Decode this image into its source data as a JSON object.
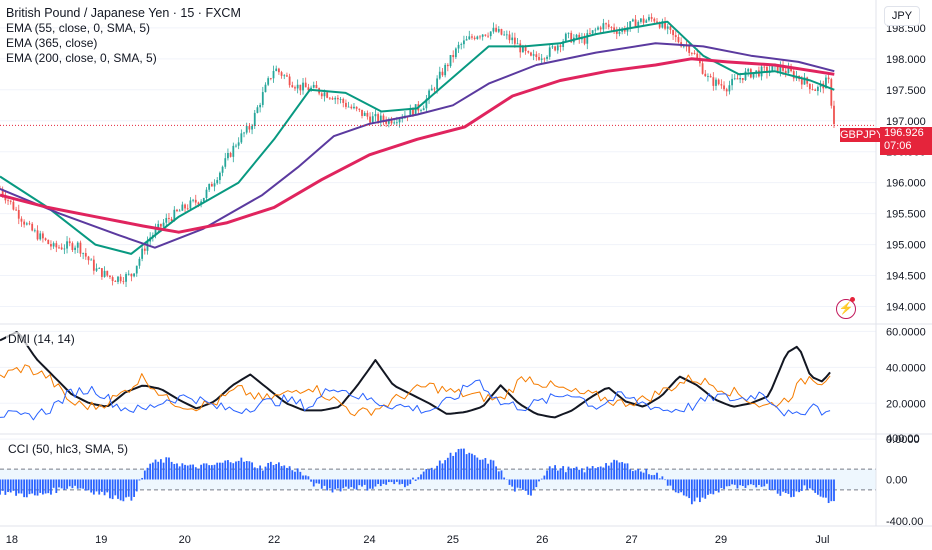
{
  "header": {
    "title": "British Pound / Japanese Yen · 15 · FXCM",
    "indicators": [
      "EMA (55, close, 0, SMA, 5)",
      "EMA (365, close)",
      "EMA (200, close, 0, SMA, 5)"
    ],
    "currency": "JPY"
  },
  "ticker": {
    "symbol": "GBPJPY",
    "last_price": "196.926",
    "countdown": "07:06",
    "color": "#e5243b"
  },
  "dmi_title": "DMI (14, 14)",
  "cci_title": "CCI (50, hlc3, SMA, 5)",
  "icons": [
    "live-indicator-icon"
  ],
  "chart_data": [
    {
      "type": "candlestick",
      "ylim": [
        193.75,
        198.95
      ],
      "y_ticks": [
        "194.000",
        "194.500",
        "195.000",
        "195.500",
        "196.000",
        "196.500",
        "197.000",
        "197.500",
        "198.000",
        "198.500"
      ],
      "x_ticks": [
        "18",
        "19",
        "20",
        "22",
        "24",
        "25",
        "26",
        "27",
        "29",
        "Jul"
      ],
      "up_color": "#26a69a",
      "down_color": "#ef5350",
      "price_path": [
        [
          0,
          195.9
        ],
        [
          5,
          195.25
        ],
        [
          9,
          194.95
        ],
        [
          13,
          195.0
        ],
        [
          16,
          194.6
        ],
        [
          19,
          194.45
        ],
        [
          22,
          194.5
        ],
        [
          25,
          195.1
        ],
        [
          28,
          195.4
        ],
        [
          31,
          195.6
        ],
        [
          34,
          195.75
        ],
        [
          37,
          196.2
        ],
        [
          40,
          196.7
        ],
        [
          42,
          196.9
        ],
        [
          44,
          197.4
        ],
        [
          46,
          197.85
        ],
        [
          48,
          197.7
        ],
        [
          50,
          197.55
        ],
        [
          53,
          197.5
        ],
        [
          56,
          197.4
        ],
        [
          59,
          197.2
        ],
        [
          62,
          197.05
        ],
        [
          65,
          197.0
        ],
        [
          68,
          197.1
        ],
        [
          71,
          197.25
        ],
        [
          74,
          197.75
        ],
        [
          77,
          198.2
        ],
        [
          80,
          198.4
        ],
        [
          83,
          198.45
        ],
        [
          86,
          198.3
        ],
        [
          89,
          198.0
        ],
        [
          92,
          198.1
        ],
        [
          95,
          198.35
        ],
        [
          98,
          198.3
        ],
        [
          101,
          198.55
        ],
        [
          104,
          198.45
        ],
        [
          107,
          198.6
        ],
        [
          110,
          198.65
        ],
        [
          113,
          198.35
        ],
        [
          116,
          198.15
        ],
        [
          119,
          197.65
        ],
        [
          122,
          197.55
        ],
        [
          125,
          197.75
        ],
        [
          128,
          197.8
        ],
        [
          131,
          197.85
        ],
        [
          134,
          197.7
        ],
        [
          137,
          197.5
        ],
        [
          139,
          197.65
        ],
        [
          140,
          196.95
        ]
      ],
      "series": [
        {
          "name": "EMA (55, close, 0, SMA, 5)",
          "color": "#089981",
          "points": [
            [
              0,
              196.1
            ],
            [
              8,
              195.6
            ],
            [
              16,
              195.0
            ],
            [
              22,
              194.85
            ],
            [
              30,
              195.45
            ],
            [
              40,
              196.0
            ],
            [
              46,
              196.7
            ],
            [
              52,
              197.5
            ],
            [
              58,
              197.45
            ],
            [
              64,
              197.15
            ],
            [
              70,
              197.2
            ],
            [
              76,
              197.7
            ],
            [
              82,
              198.2
            ],
            [
              88,
              198.2
            ],
            [
              94,
              198.25
            ],
            [
              100,
              198.4
            ],
            [
              106,
              198.5
            ],
            [
              112,
              198.6
            ],
            [
              118,
              198.05
            ],
            [
              124,
              197.75
            ],
            [
              130,
              197.8
            ],
            [
              136,
              197.65
            ],
            [
              140,
              197.5
            ]
          ]
        },
        {
          "name": "EMA (365, close)",
          "color": "#5b3a9f",
          "points": [
            [
              0,
              195.9
            ],
            [
              10,
              195.5
            ],
            [
              20,
              195.15
            ],
            [
              26,
              194.95
            ],
            [
              34,
              195.25
            ],
            [
              44,
              195.8
            ],
            [
              50,
              196.25
            ],
            [
              56,
              196.75
            ],
            [
              62,
              196.95
            ],
            [
              70,
              197.1
            ],
            [
              76,
              197.25
            ],
            [
              82,
              197.6
            ],
            [
              90,
              197.9
            ],
            [
              100,
              198.1
            ],
            [
              110,
              198.25
            ],
            [
              118,
              198.2
            ],
            [
              126,
              198.05
            ],
            [
              134,
              197.95
            ],
            [
              140,
              197.8
            ]
          ]
        },
        {
          "name": "EMA (200, close, 0, SMA, 5)",
          "color": "#e0245e",
          "points": [
            [
              0,
              195.8
            ],
            [
              8,
              195.6
            ],
            [
              16,
              195.45
            ],
            [
              24,
              195.3
            ],
            [
              30,
              195.2
            ],
            [
              38,
              195.35
            ],
            [
              46,
              195.6
            ],
            [
              54,
              196.05
            ],
            [
              62,
              196.45
            ],
            [
              70,
              196.7
            ],
            [
              78,
              196.9
            ],
            [
              86,
              197.4
            ],
            [
              94,
              197.65
            ],
            [
              102,
              197.8
            ],
            [
              110,
              197.9
            ],
            [
              116,
              198.0
            ],
            [
              122,
              197.95
            ],
            [
              130,
              197.9
            ],
            [
              140,
              197.75
            ]
          ]
        }
      ],
      "last_price_line": 196.926
    },
    {
      "type": "line",
      "title": "DMI (14, 14)",
      "ylim": [
        4,
        63
      ],
      "y_ticks": [
        "0.0000",
        "20.0000",
        "40.0000",
        "60.0000"
      ],
      "series": [
        {
          "color": "#131722",
          "points": [
            [
              0,
              55
            ],
            [
              3,
              60
            ],
            [
              6,
              45
            ],
            [
              9,
              35
            ],
            [
              12,
              25
            ],
            [
              15,
              20
            ],
            [
              18,
              18
            ],
            [
              21,
              26
            ],
            [
              24,
              30
            ],
            [
              27,
              28
            ],
            [
              30,
              22
            ],
            [
              33,
              17
            ],
            [
              36,
              21
            ],
            [
              39,
              30
            ],
            [
              42,
              36
            ],
            [
              45,
              28
            ],
            [
              48,
              20
            ],
            [
              51,
              16
            ],
            [
              54,
              16
            ],
            [
              57,
              18
            ],
            [
              60,
              30
            ],
            [
              63,
              44
            ],
            [
              66,
              30
            ],
            [
              69,
              25
            ],
            [
              72,
              20
            ],
            [
              75,
              14
            ],
            [
              78,
              15
            ],
            [
              81,
              18
            ],
            [
              84,
              30
            ],
            [
              87,
              20
            ],
            [
              90,
              14
            ],
            [
              93,
              12
            ],
            [
              96,
              16
            ],
            [
              99,
              23
            ],
            [
              102,
              29
            ],
            [
              105,
              21
            ],
            [
              108,
              18
            ],
            [
              111,
              24
            ],
            [
              114,
              35
            ],
            [
              117,
              30
            ],
            [
              120,
              22
            ],
            [
              123,
              18
            ],
            [
              126,
              20
            ],
            [
              129,
              24
            ],
            [
              132,
              48
            ],
            [
              134,
              52
            ],
            [
              136,
              35
            ],
            [
              138,
              32
            ],
            [
              140,
              40
            ]
          ]
        },
        {
          "color": "#f57c00",
          "points": [
            [
              0,
              35
            ],
            [
              4,
              40
            ],
            [
              8,
              35
            ],
            [
              12,
              20
            ],
            [
              16,
              18
            ],
            [
              20,
              24
            ],
            [
              24,
              35
            ],
            [
              28,
              22
            ],
            [
              32,
              18
            ],
            [
              36,
              20
            ],
            [
              40,
              28
            ],
            [
              44,
              22
            ],
            [
              48,
              25
            ],
            [
              52,
              30
            ],
            [
              56,
              22
            ],
            [
              60,
              14
            ],
            [
              64,
              18
            ],
            [
              68,
              25
            ],
            [
              72,
              30
            ],
            [
              76,
              26
            ],
            [
              80,
              24
            ],
            [
              84,
              22
            ],
            [
              88,
              35
            ],
            [
              92,
              30
            ],
            [
              96,
              26
            ],
            [
              100,
              24
            ],
            [
              104,
              20
            ],
            [
              108,
              22
            ],
            [
              112,
              28
            ],
            [
              116,
              34
            ],
            [
              120,
              30
            ],
            [
              124,
              25
            ],
            [
              128,
              18
            ],
            [
              132,
              22
            ],
            [
              134,
              30
            ],
            [
              136,
              35
            ],
            [
              138,
              32
            ],
            [
              140,
              40
            ]
          ]
        },
        {
          "color": "#2962ff",
          "points": [
            [
              0,
              14
            ],
            [
              4,
              12
            ],
            [
              8,
              16
            ],
            [
              12,
              26
            ],
            [
              16,
              28
            ],
            [
              20,
              18
            ],
            [
              24,
              16
            ],
            [
              28,
              22
            ],
            [
              32,
              24
            ],
            [
              36,
              18
            ],
            [
              40,
              16
            ],
            [
              44,
              20
            ],
            [
              48,
              22
            ],
            [
              52,
              18
            ],
            [
              56,
              30
            ],
            [
              60,
              24
            ],
            [
              64,
              20
            ],
            [
              68,
              18
            ],
            [
              72,
              16
            ],
            [
              76,
              22
            ],
            [
              80,
              34
            ],
            [
              84,
              20
            ],
            [
              88,
              18
            ],
            [
              92,
              22
            ],
            [
              96,
              26
            ],
            [
              100,
              18
            ],
            [
              104,
              24
            ],
            [
              108,
              20
            ],
            [
              112,
              16
            ],
            [
              116,
              18
            ],
            [
              120,
              24
            ],
            [
              124,
              22
            ],
            [
              128,
              26
            ],
            [
              132,
              14
            ],
            [
              134,
              12
            ],
            [
              136,
              20
            ],
            [
              138,
              16
            ],
            [
              140,
              13
            ]
          ]
        }
      ]
    },
    {
      "type": "bar",
      "title": "CCI (50, hlc3, SMA, 5)",
      "ylim": [
        -430,
        420
      ],
      "y_ticks": [
        "-400.00",
        "0.00",
        "400.00"
      ],
      "band_levels": [
        -100,
        100
      ],
      "color": "#2962ff",
      "values_path": [
        [
          0,
          -120
        ],
        [
          6,
          -160
        ],
        [
          12,
          -60
        ],
        [
          18,
          -150
        ],
        [
          22,
          -200
        ],
        [
          25,
          150
        ],
        [
          28,
          190
        ],
        [
          32,
          120
        ],
        [
          36,
          140
        ],
        [
          40,
          200
        ],
        [
          44,
          110
        ],
        [
          46,
          170
        ],
        [
          48,
          120
        ],
        [
          50,
          90
        ],
        [
          53,
          -60
        ],
        [
          56,
          -100
        ],
        [
          59,
          -70
        ],
        [
          62,
          -80
        ],
        [
          65,
          -40
        ],
        [
          68,
          -50
        ],
        [
          71,
          60
        ],
        [
          74,
          160
        ],
        [
          77,
          300
        ],
        [
          80,
          200
        ],
        [
          83,
          160
        ],
        [
          86,
          -90
        ],
        [
          89,
          -140
        ],
        [
          92,
          120
        ],
        [
          95,
          100
        ],
        [
          98,
          90
        ],
        [
          101,
          140
        ],
        [
          104,
          170
        ],
        [
          107,
          90
        ],
        [
          110,
          60
        ],
        [
          113,
          -80
        ],
        [
          116,
          -220
        ],
        [
          119,
          -160
        ],
        [
          122,
          -60
        ],
        [
          125,
          -90
        ],
        [
          128,
          -40
        ],
        [
          131,
          -130
        ],
        [
          133,
          -160
        ],
        [
          135,
          -60
        ],
        [
          137,
          -130
        ],
        [
          139,
          -200
        ],
        [
          140,
          -240
        ]
      ]
    }
  ]
}
